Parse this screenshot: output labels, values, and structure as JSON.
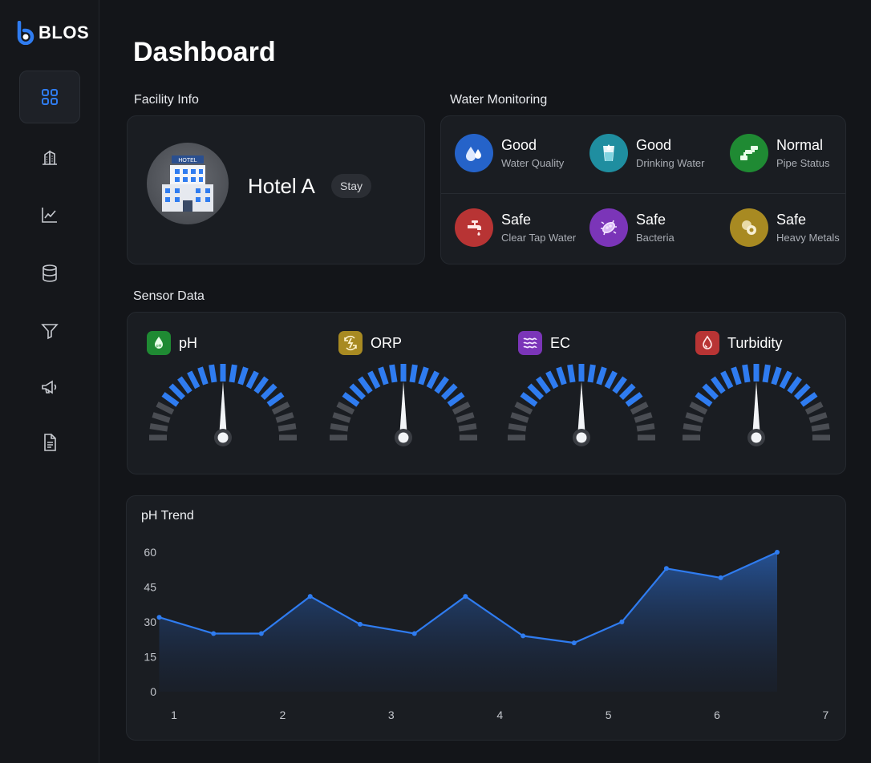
{
  "app": {
    "logo_text": "BLOS"
  },
  "sidebar": {
    "items": [
      {
        "icon": "grid-icon",
        "active": true
      },
      {
        "icon": "building-icon",
        "active": false
      },
      {
        "icon": "trend-icon",
        "active": false
      },
      {
        "icon": "database-icon",
        "active": false
      },
      {
        "icon": "filter-icon",
        "active": false
      },
      {
        "icon": "megaphone-icon",
        "active": false
      },
      {
        "icon": "document-icon",
        "active": false
      }
    ]
  },
  "page": {
    "title": "Dashboard"
  },
  "facility": {
    "section_title": "Facility Info",
    "name": "Hotel A",
    "badge": "Stay",
    "avatar_sign": "HOTEL"
  },
  "water": {
    "section_title": "Water Monitoring",
    "items": [
      {
        "status": "Good",
        "label": "Water Quality",
        "icon": "water-drops-icon",
        "color": "#2563c9"
      },
      {
        "status": "Good",
        "label": "Drinking Water",
        "icon": "water-glass-icon",
        "color": "#1f8ea0"
      },
      {
        "status": "Normal",
        "label": "Pipe Status",
        "icon": "pipe-icon",
        "color": "#1f8a33"
      },
      {
        "status": "Safe",
        "label": "Clear Tap Water",
        "icon": "faucet-icon",
        "color": "#b83434"
      },
      {
        "status": "Safe",
        "label": "Bacteria",
        "icon": "bacteria-icon",
        "color": "#7b35b8"
      },
      {
        "status": "Safe",
        "label": "Heavy Metals",
        "icon": "metals-icon",
        "color": "#a88a22"
      }
    ]
  },
  "sensors": {
    "section_title": "Sensor Data",
    "items": [
      {
        "name": "pH",
        "icon": "ph-icon",
        "color": "#1f8a33",
        "icon_text": "pH"
      },
      {
        "name": "ORP",
        "icon": "orp-icon",
        "color": "#a88a22",
        "icon_text": ""
      },
      {
        "name": "EC",
        "icon": "ec-icon",
        "color": "#7b35b8",
        "icon_text": ""
      },
      {
        "name": "Turbidity",
        "icon": "turbidity-icon",
        "color": "#b83434",
        "icon_text": ""
      }
    ],
    "gauge_accent": "#2f7cf0"
  },
  "chart_data": {
    "type": "area",
    "title": "pH Trend",
    "x_ticks": [
      "1",
      "2",
      "3",
      "4",
      "5",
      "6",
      "7"
    ],
    "y_ticks": [
      0,
      15,
      30,
      45,
      60
    ],
    "ylim": [
      0,
      60
    ],
    "xlim": [
      1,
      7.1
    ],
    "xlabel": "",
    "ylabel": "",
    "grid": false,
    "series": [
      {
        "x": [
          0.93,
          1.43,
          1.87,
          2.32,
          2.78,
          3.28,
          3.75,
          4.28,
          4.75,
          5.19,
          5.6,
          6.1,
          6.62
        ],
        "values": [
          32,
          25,
          25,
          41,
          29,
          25,
          41,
          24,
          21,
          30,
          53,
          49,
          60
        ],
        "color": "#2f7cf0"
      }
    ]
  }
}
